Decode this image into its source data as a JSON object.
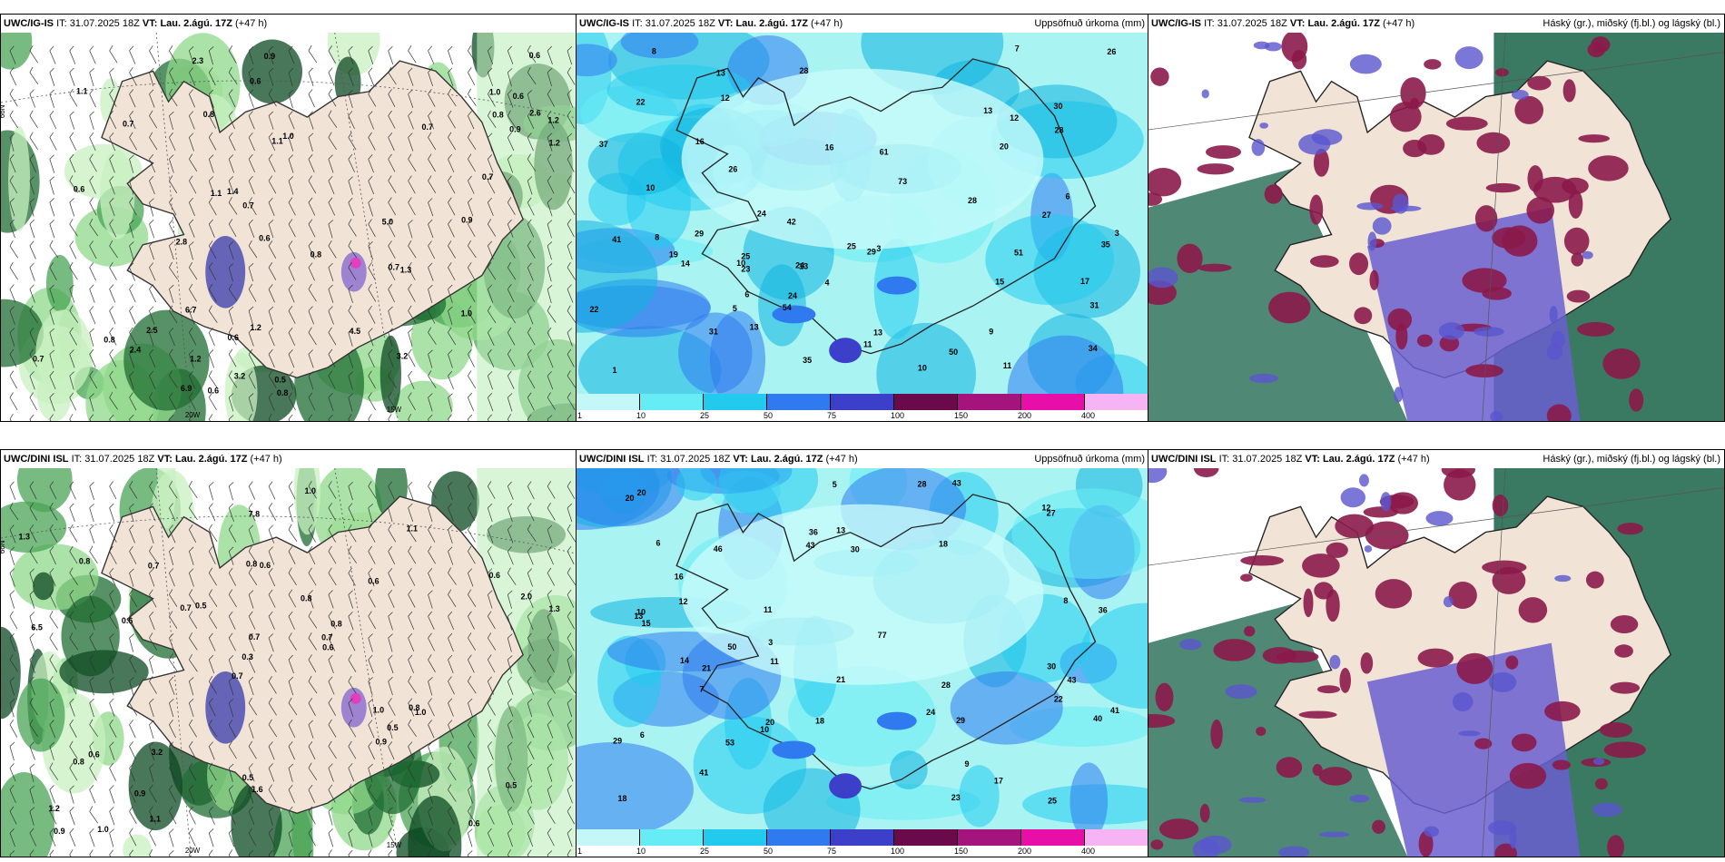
{
  "panels": [
    {
      "model": "UWC/IG-IS",
      "it_label": "IT:",
      "it": "31.07.2025 18Z",
      "vt_label": "VT:",
      "vt": "Lau. 2.ágú. 17Z",
      "lead": "(+47 h)",
      "right_title": "",
      "type": "precip-wind"
    },
    {
      "model": "UWC/IG-IS",
      "it_label": "IT:",
      "it": "31.07.2025 18Z",
      "vt_label": "VT:",
      "vt": "Lau. 2.ágú. 17Z",
      "lead": "(+47 h)",
      "right_title": "Uppsöfnuð úrkoma (mm)",
      "type": "accum"
    },
    {
      "model": "UWC/IG-IS",
      "it_label": "IT:",
      "it": "31.07.2025 18Z",
      "vt_label": "VT:",
      "vt": "Lau. 2.ágú. 17Z",
      "lead": "(+47 h)",
      "right_title": "Háský (gr.), miðský (fj.bl.) og lágský (bl.)",
      "type": "clouds"
    },
    {
      "model": "UWC/DINI ISL",
      "it_label": "IT:",
      "it": "31.07.2025 18Z",
      "vt_label": "VT:",
      "vt": "Lau. 2.ágú. 17Z",
      "lead": "(+47 h)",
      "right_title": "",
      "type": "precip-wind"
    },
    {
      "model": "UWC/DINI ISL",
      "it_label": "IT:",
      "it": "31.07.2025 18Z",
      "vt_label": "VT:",
      "vt": "Lau. 2.ágú. 17Z",
      "lead": "(+47 h)",
      "right_title": "Uppsöfnuð úrkoma (mm)",
      "type": "accum"
    },
    {
      "model": "UWC/DINI ISL",
      "it_label": "IT:",
      "it": "31.07.2025 18Z",
      "vt_label": "VT:",
      "vt": "Lau. 2.ágú. 17Z",
      "lead": "(+47 h)",
      "right_title": "Háský (gr.), miðský (fj.bl.) og lágský (bl.)",
      "type": "clouds"
    }
  ],
  "legend": {
    "labels": [
      "1",
      "10",
      "25",
      "50",
      "75",
      "100",
      "150",
      "200",
      "400"
    ],
    "colors": [
      "#c4f8f8",
      "#66ecf4",
      "#22cbee",
      "#2f7aee",
      "#3b3fc9",
      "#6a0a4a",
      "#a5137d",
      "#e80ea8",
      "#f7b4f4"
    ]
  },
  "grid_labels": {
    "lat66": "66N",
    "lon20w": "20W",
    "lon15w": "15W",
    "lat63": "63N"
  },
  "colors": {
    "land": "#f1e3d6",
    "sea_accum": "#b6f5f5",
    "cloud_high": "#8b1a4a",
    "cloud_mid": "#6a5fcf",
    "cloud_low": "#2f6b4a"
  },
  "precip_values_top": [
    "0.9",
    "0.7",
    "0.7",
    "1.2",
    "0.7",
    "1.4",
    "1.1",
    "0.6",
    "2.5",
    "4.5",
    "6.7",
    "6.9",
    "0.7",
    "1.1",
    "0.9",
    "2.4",
    "5.0",
    "3.2",
    "2.3",
    "0.8",
    "0.6",
    "0.6",
    "0.6",
    "0.6",
    "0.7",
    "1.2",
    "0.8",
    "2.6",
    "2.8",
    "1.0",
    "0.7",
    "3.2",
    "1.3",
    "1.2",
    "0.8",
    "0.5",
    "1.0",
    "0.8",
    "0.9",
    "0.8",
    "1.0",
    "1.2",
    "0.6",
    "1.1",
    "0.6"
  ],
  "precip_values_bottom": [
    "0.7",
    "0.6",
    "1.0",
    "0.8",
    "0.8",
    "0.6",
    "0.5",
    "1.2",
    "0.9",
    "0.6",
    "0.8",
    "1.0",
    "0.8",
    "7.8",
    "6.5",
    "1.0",
    "2.0",
    "0.3",
    "0.5",
    "0.7",
    "0.7",
    "1.1",
    "3.2",
    "0.6",
    "0.5",
    "0.8",
    "1.0",
    "0.7",
    "0.6",
    "0.9",
    "1.1",
    "1.3",
    "0.7",
    "0.9",
    "1.6",
    "0.6",
    "0.8",
    "0.6",
    "1.3",
    "0.5"
  ],
  "accum_values_top": [
    "9",
    "16",
    "17",
    "13",
    "28",
    "29",
    "34",
    "30",
    "31",
    "50",
    "22",
    "24",
    "26",
    "25",
    "25",
    "8",
    "10",
    "13",
    "11",
    "13",
    "15",
    "16",
    "14",
    "3",
    "12",
    "10",
    "6",
    "5",
    "42",
    "41",
    "27",
    "51",
    "73",
    "23",
    "28",
    "29",
    "35",
    "31",
    "26",
    "19",
    "24",
    "22",
    "13",
    "54",
    "37",
    "61",
    "35",
    "28",
    "24",
    "20",
    "13",
    "10",
    "12",
    "11",
    "1",
    "7",
    "4",
    "3",
    "8",
    "6"
  ],
  "accum_values_bottom": [
    "12",
    "15",
    "20",
    "29",
    "28",
    "18",
    "30",
    "43",
    "27",
    "23",
    "50",
    "53",
    "30",
    "20",
    "21",
    "24",
    "28",
    "29",
    "18",
    "3",
    "6",
    "7",
    "5",
    "9",
    "10",
    "11",
    "12",
    "13",
    "11",
    "22",
    "25",
    "17",
    "20",
    "40",
    "36",
    "41",
    "43",
    "46",
    "77",
    "43",
    "41",
    "36",
    "21",
    "13",
    "16",
    "14",
    "18",
    "6",
    "8",
    "10"
  ]
}
